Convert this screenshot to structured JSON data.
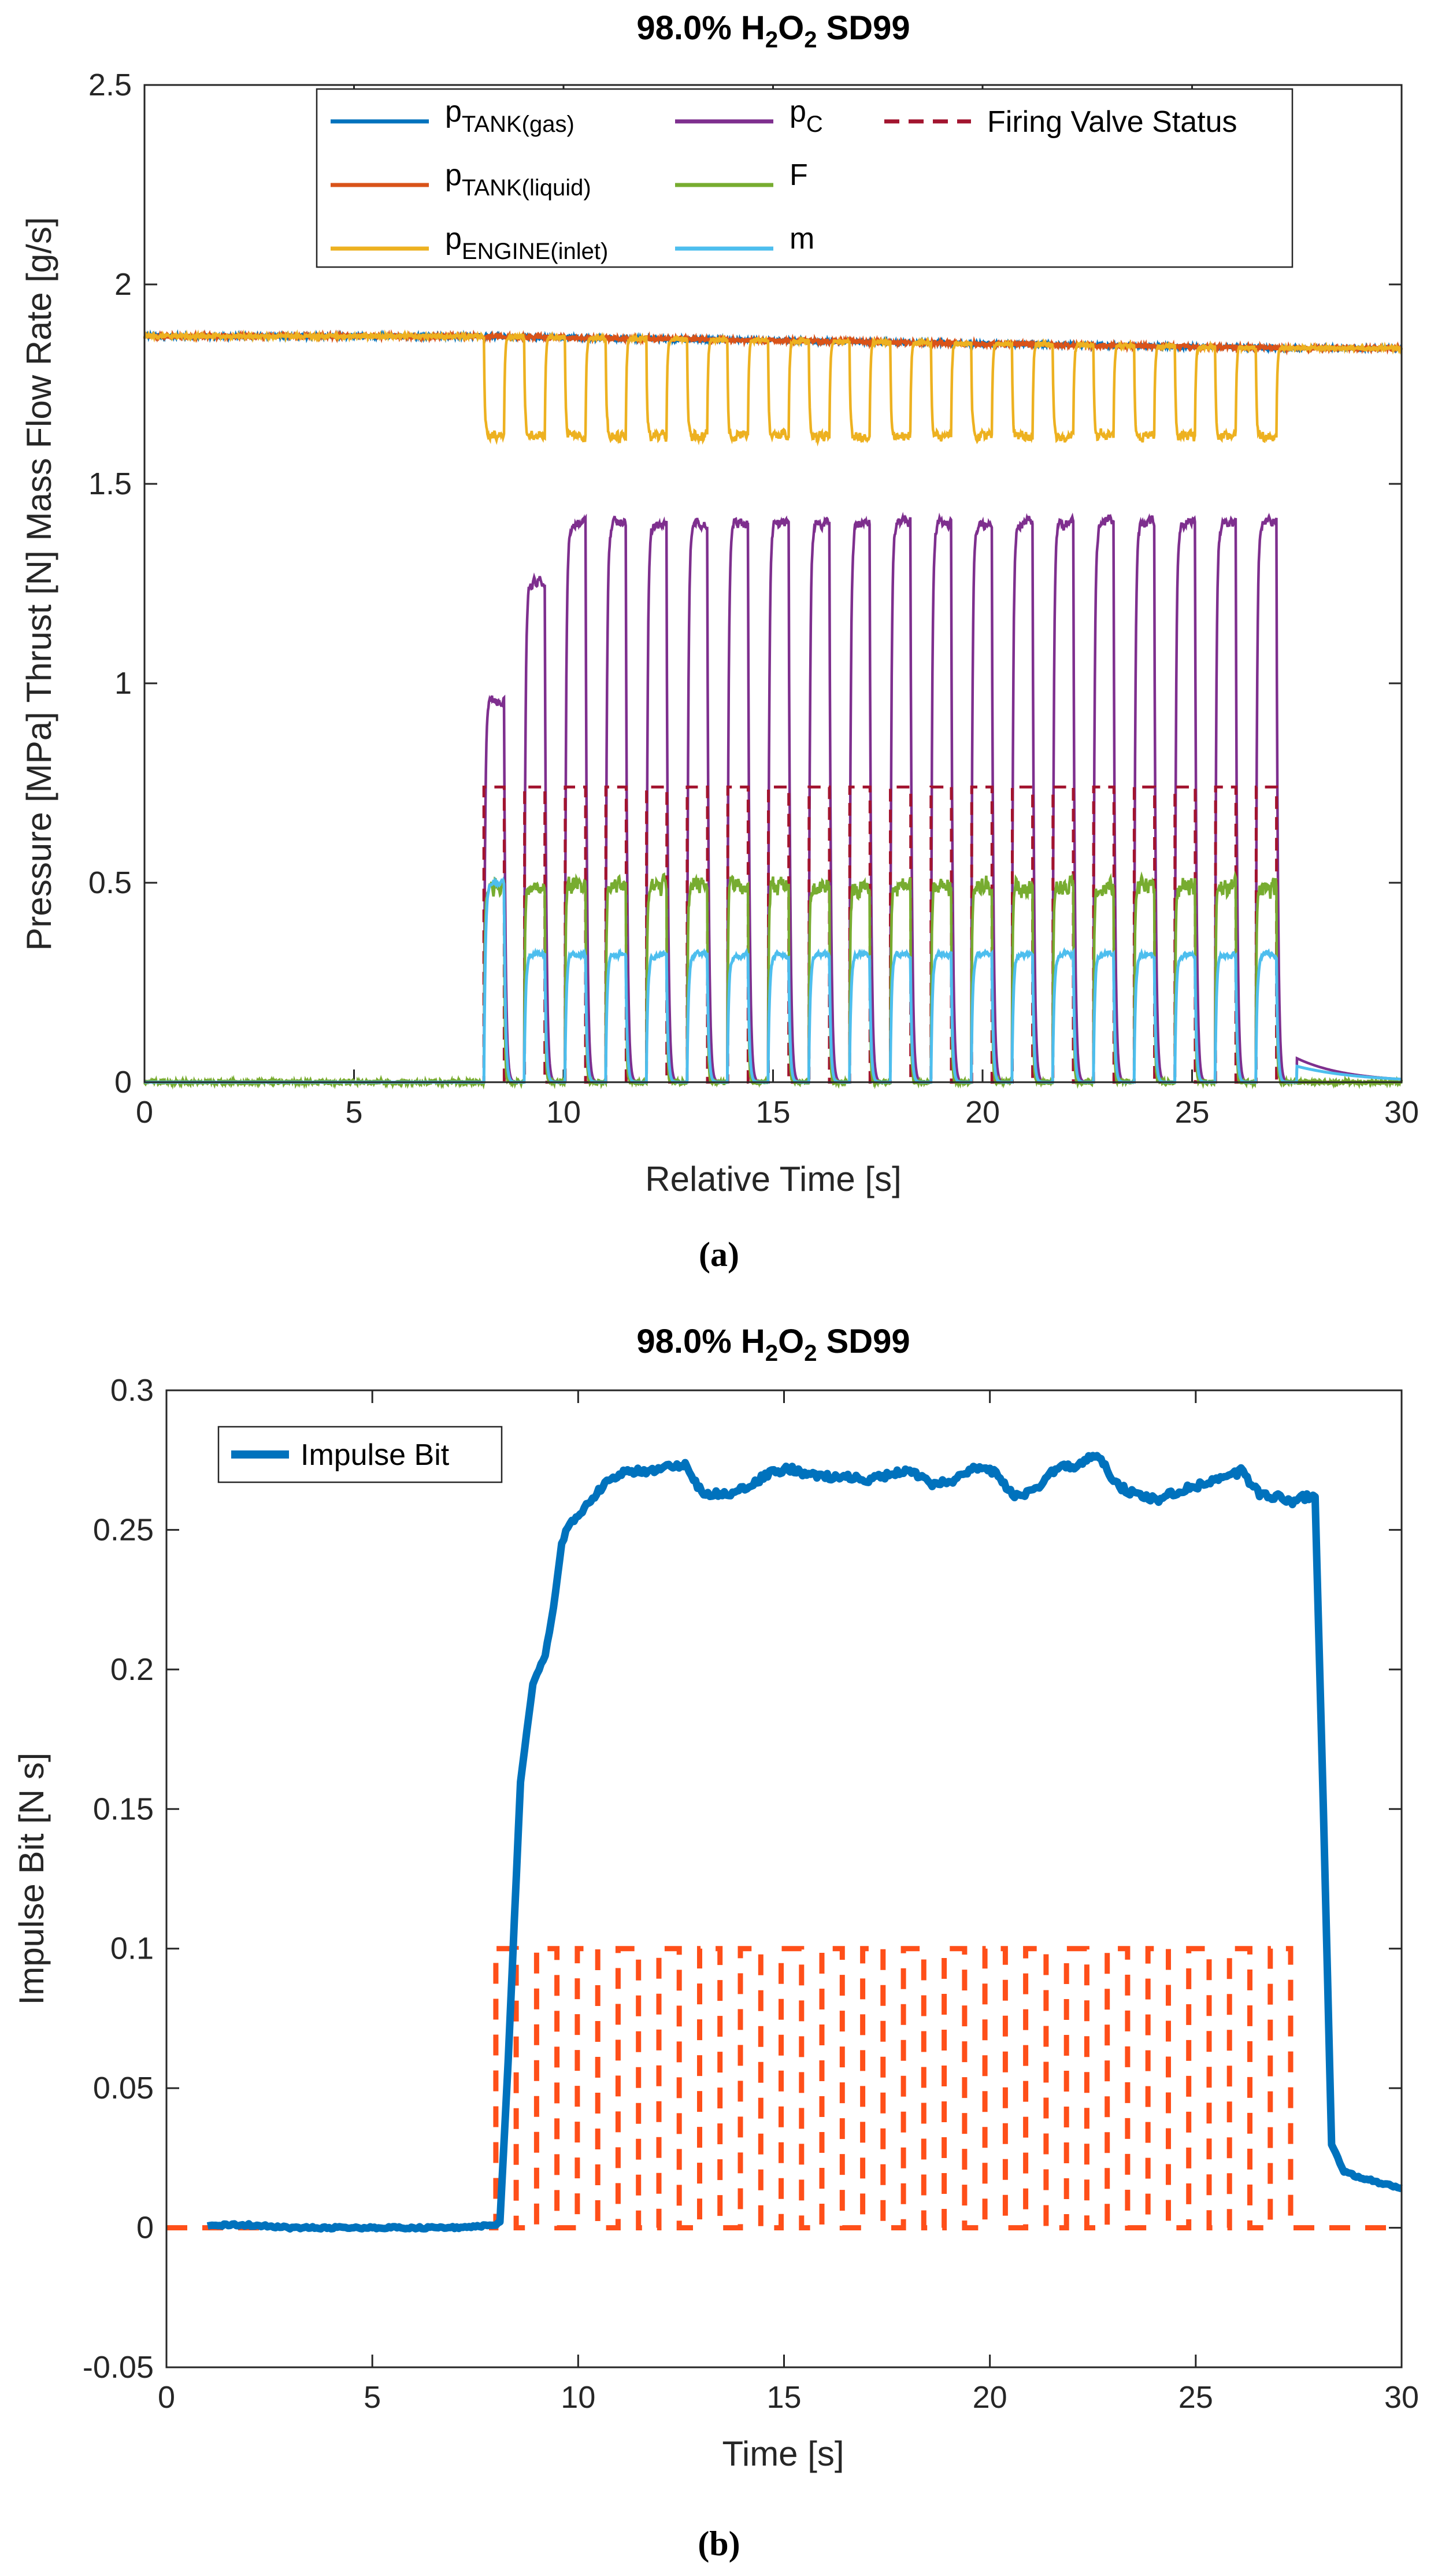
{
  "chart_data": [
    {
      "type": "line",
      "panel": "(a)",
      "title": "98.0% H2O2 SD99",
      "title_parts": [
        "98.0% H",
        "2",
        "O",
        "2",
        " SD99"
      ],
      "xlabel": "Relative Time [s]",
      "ylabel": "Pressure [MPa] Thrust [N] Mass Flow Rate [g/s]",
      "xlim": [
        0,
        30
      ],
      "ylim": [
        0,
        2.5
      ],
      "xticks": [
        "0",
        "5",
        "10",
        "15",
        "20",
        "25",
        "30"
      ],
      "yticks": [
        "0",
        "0.5",
        "1",
        "1.5",
        "2",
        "2.5"
      ],
      "caption": "(a)",
      "firing": {
        "start": 8.1,
        "period": 0.97,
        "pulses": 20,
        "duty": 0.5
      },
      "legend": {
        "location": "top",
        "columns": 2
      },
      "series": [
        {
          "name": "p_TANK(gas)",
          "label_main": "p",
          "label_sub": "TANK(gas)",
          "color": "#0072BD",
          "style": "solid",
          "off_value": 1.87,
          "on_value": 1.86,
          "end_value": 1.84
        },
        {
          "name": "p_TANK(liquid)",
          "label_main": "p",
          "label_sub": "TANK(liquid)",
          "color": "#D95319",
          "style": "solid",
          "off_value": 1.87,
          "on_value": 1.86,
          "end_value": 1.84
        },
        {
          "name": "p_ENGINE(inlet)",
          "label_main": "p",
          "label_sub": "ENGINE(inlet)",
          "color": "#EDB120",
          "style": "solid",
          "off_value": 1.87,
          "on_value": 1.62,
          "end_value": 1.84
        },
        {
          "name": "p_C",
          "label_main": "p",
          "label_sub": "C",
          "color": "#7E2F8E",
          "style": "solid",
          "off_value": 0.0,
          "on_value": 1.4,
          "first_pulse_value": 0.95
        },
        {
          "name": "F",
          "label_main": "F",
          "label_sub": "",
          "color": "#77AC30",
          "style": "solid",
          "off_value": 0.0,
          "on_value": 0.49
        },
        {
          "name": "m",
          "label_main": "m",
          "label_sub": "",
          "color": "#4DBEEE",
          "style": "solid",
          "off_value": 0.0,
          "on_value": 0.32,
          "first_pulse_value": 0.5
        },
        {
          "name": "Firing Valve Status",
          "label_main": "Firing Valve Status",
          "label_sub": "",
          "color": "#A2142F",
          "style": "dashed",
          "off_value": 0.0,
          "on_value": 0.74
        }
      ]
    },
    {
      "type": "line",
      "panel": "(b)",
      "title": "98.0% H2O2 SD99",
      "title_parts": [
        "98.0% H",
        "2",
        "O",
        "2",
        " SD99"
      ],
      "xlabel": "Time [s]",
      "ylabel": "Impulse Bit [N s]",
      "xlim": [
        0,
        30
      ],
      "ylim": [
        -0.05,
        0.3
      ],
      "xticks": [
        "0",
        "5",
        "10",
        "15",
        "20",
        "25",
        "30"
      ],
      "yticks": [
        "-0.05",
        "0",
        "0.05",
        "0.1",
        "0.15",
        "0.2",
        "0.25",
        "0.3"
      ],
      "caption": "(b)",
      "legend": {
        "location": "top-left",
        "entries": [
          "Impulse Bit"
        ]
      },
      "series": [
        {
          "name": "Impulse Bit",
          "color": "#0072BD",
          "style": "solid",
          "x": [
            1.0,
            2,
            3,
            4,
            5,
            6,
            7,
            8.0,
            8.1,
            8.3,
            8.6,
            8.9,
            9.2,
            9.4,
            9.6,
            9.8,
            10.0,
            10.3,
            10.6,
            11.0,
            11.5,
            12.0,
            12.6,
            12.9,
            13.1,
            13.6,
            14.1,
            14.6,
            15.1,
            15.6,
            16.1,
            16.6,
            17.1,
            17.6,
            18.1,
            18.6,
            19.1,
            19.6,
            20.1,
            20.6,
            21.1,
            21.6,
            22.1,
            22.6,
            23.1,
            23.6,
            24.1,
            24.6,
            25.1,
            25.6,
            26.1,
            26.6,
            27.0,
            27.3,
            27.7,
            27.9,
            28.1,
            28.3,
            28.6,
            29.0,
            29.5,
            30.0
          ],
          "y": [
            0.001,
            0.001,
            0.0,
            0.0,
            0.0,
            0.0,
            0.0,
            0.001,
            0.002,
            0.06,
            0.16,
            0.195,
            0.205,
            0.222,
            0.245,
            0.253,
            0.255,
            0.26,
            0.266,
            0.27,
            0.271,
            0.272,
            0.273,
            0.266,
            0.263,
            0.263,
            0.265,
            0.27,
            0.272,
            0.27,
            0.269,
            0.269,
            0.268,
            0.27,
            0.271,
            0.266,
            0.268,
            0.272,
            0.271,
            0.262,
            0.264,
            0.272,
            0.273,
            0.277,
            0.266,
            0.262,
            0.261,
            0.264,
            0.266,
            0.268,
            0.271,
            0.262,
            0.262,
            0.26,
            0.262,
            0.262,
            0.15,
            0.03,
            0.02,
            0.018,
            0.016,
            0.014
          ]
        },
        {
          "name": "Firing Valve Status",
          "color": "#FF4F19",
          "style": "dashed",
          "off_value": 0.0,
          "on_value": 0.1,
          "start": 8.0,
          "end": 27.8,
          "pulses": 20
        }
      ]
    }
  ]
}
